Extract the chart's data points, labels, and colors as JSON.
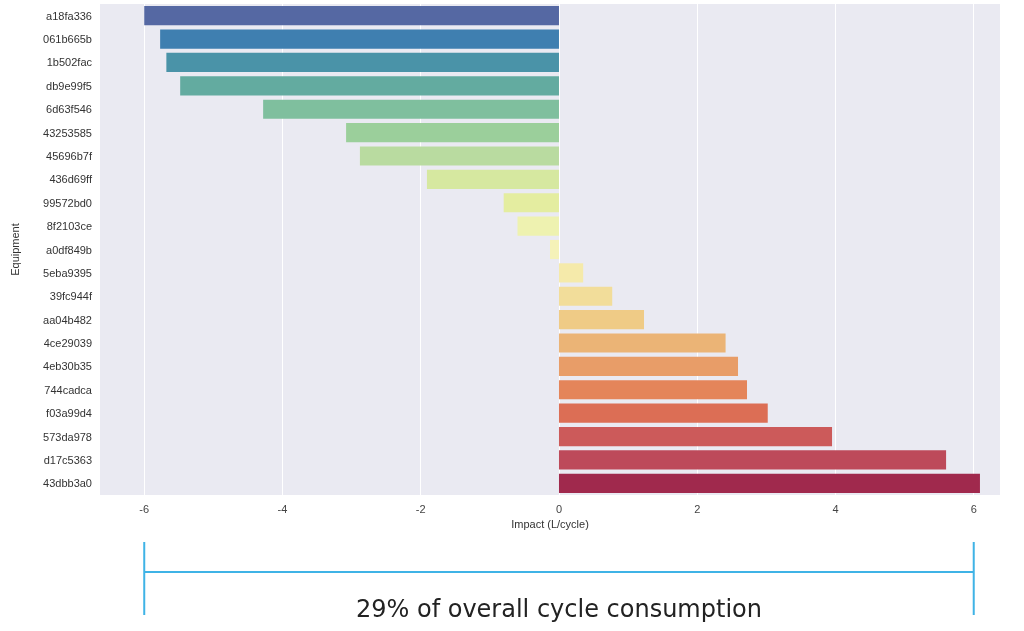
{
  "chart_data": {
    "type": "bar",
    "orientation": "horizontal",
    "xlabel": "Impact (L/cycle)",
    "ylabel": "Equipment",
    "categories": [
      "a18fa336",
      "061b665b",
      "1b502fac",
      "db9e99f5",
      "6d63f546",
      "43253585",
      "45696b7f",
      "436d69ff",
      "99572bd0",
      "8f2103ce",
      "a0df849b",
      "5eba9395",
      "39fc944f",
      "aa04b482",
      "4ce29039",
      "4eb30b35",
      "744cadca",
      "f03a99d4",
      "573da978",
      "d17c5363",
      "43dbb3a0"
    ],
    "values": [
      -6.0,
      -5.77,
      -5.68,
      -5.48,
      -4.28,
      -3.08,
      -2.88,
      -1.91,
      -0.8,
      -0.6,
      -0.13,
      0.35,
      0.77,
      1.23,
      2.41,
      2.59,
      2.72,
      3.02,
      3.95,
      5.6,
      6.09
    ],
    "colors": [
      "#5568a3",
      "#3f7fb0",
      "#4a93a8",
      "#63aba0",
      "#7fbf9e",
      "#9bcf9b",
      "#b9dba0",
      "#d6e8a0",
      "#e4eda0",
      "#eef2b0",
      "#f5f2b8",
      "#f5eaaa",
      "#f2dd9a",
      "#efcb86",
      "#ebb476",
      "#e89d68",
      "#e4855a",
      "#dc6e55",
      "#cc5a5a",
      "#bd4a5a",
      "#a0294d"
    ],
    "xlim": [
      -6.64,
      6.38
    ],
    "xticks": [
      -6,
      -4,
      -2,
      0,
      2,
      4,
      6
    ],
    "grid": "x",
    "annotations": [
      "29% of overall cycle consumption"
    ]
  }
}
